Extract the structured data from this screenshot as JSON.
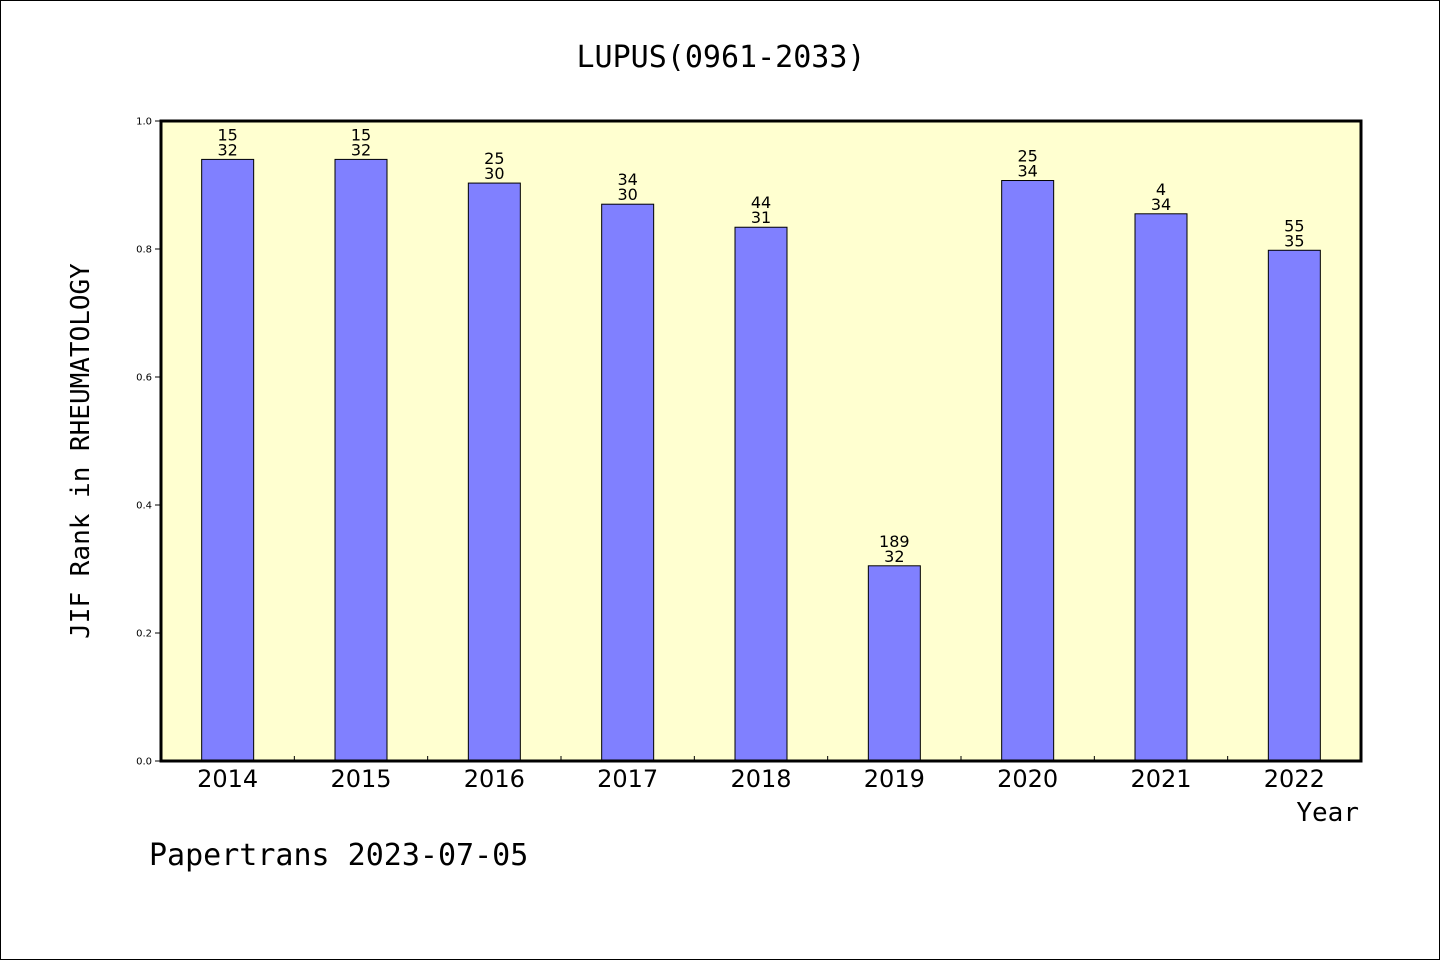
{
  "page": {
    "footer": "Papertrans 2023-07-05"
  },
  "chart_data": {
    "type": "bar",
    "title": "LUPUS(0961-2033)",
    "xlabel": "Year",
    "ylabel": "JIF Rank in RHEUMATOLOGY",
    "ylim": [
      0.0,
      1.0
    ],
    "yticks": [
      "0.0",
      "0.2",
      "0.4",
      "0.6",
      "0.8",
      "1.0"
    ],
    "categories": [
      "2014",
      "2015",
      "2016",
      "2017",
      "2018",
      "2019",
      "2020",
      "2021",
      "2022"
    ],
    "values": [
      0.94,
      0.94,
      0.903,
      0.87,
      0.834,
      0.305,
      0.907,
      0.855,
      0.798
    ],
    "labels": [
      [
        "15",
        "32"
      ],
      [
        "15",
        "32"
      ],
      [
        "25",
        "30"
      ],
      [
        "34",
        "30"
      ],
      [
        "44",
        "31"
      ],
      [
        "189",
        "32"
      ],
      [
        "25",
        "34"
      ],
      [
        "4",
        "34"
      ],
      [
        "55",
        "35"
      ]
    ],
    "grid": false,
    "colors": {
      "plot_background": "#ffffd0",
      "bar_fill": "#8080ff",
      "bar_stroke": "#000000"
    }
  }
}
